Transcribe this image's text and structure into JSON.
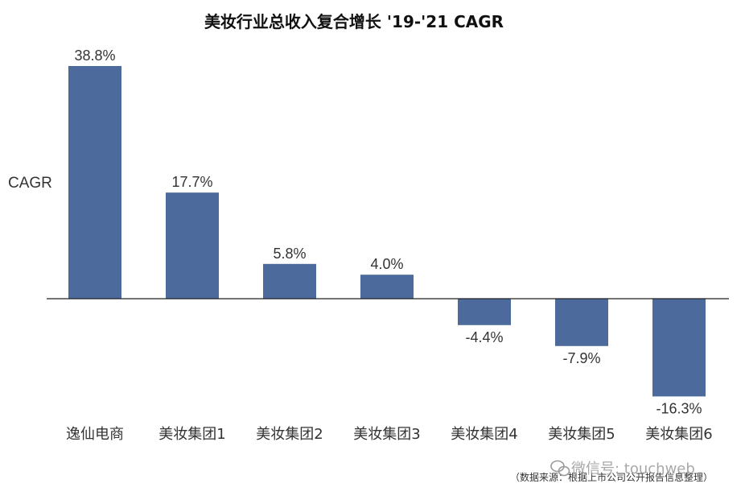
{
  "chart_data": {
    "type": "bar",
    "title": "美妆行业总收入复合增长 '19-'21 CAGR",
    "ylabel": "CAGR",
    "xlabel": "",
    "categories": [
      "逸仙电商",
      "美妆集团1",
      "美妆集团2",
      "美妆集团3",
      "美妆集团4",
      "美妆集团5",
      "美妆集团6"
    ],
    "values": [
      38.8,
      17.7,
      5.8,
      4.0,
      -4.4,
      -7.9,
      -16.3
    ],
    "data_labels": [
      "38.8%",
      "17.7%",
      "5.8%",
      "4.0%",
      "-4.4%",
      "-7.9%",
      "-16.3%"
    ],
    "ylim": [
      -17,
      40
    ],
    "grid": false,
    "bar_color": "#4d6a9c",
    "axis_color": "#222222"
  },
  "footer": {
    "source": "（数据来源：根据上市公司公开报告信息整理）"
  },
  "watermark": {
    "text": "微信号: touchweb",
    "icon": "wechat-icon"
  }
}
